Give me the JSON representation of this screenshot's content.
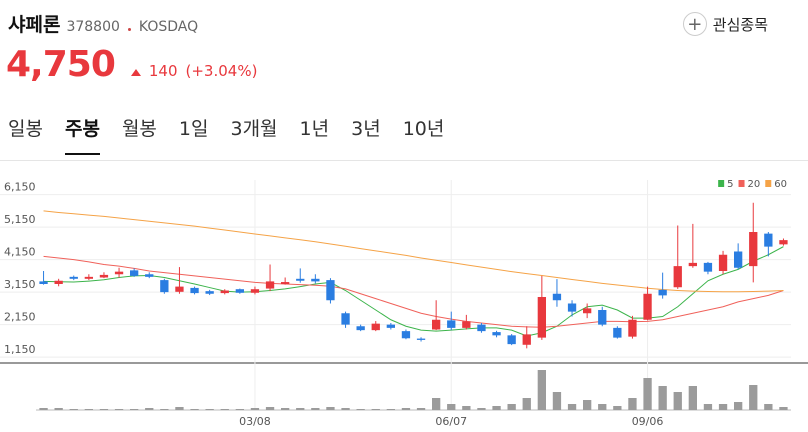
{
  "header": {
    "name": "샤페론",
    "code": "378800",
    "market": "KOSDAQ",
    "price": "4,750",
    "change": "140",
    "change_pct": "(+3.04%)",
    "watch_button": "관심종목"
  },
  "tabs": [
    "일봉",
    "주봉",
    "월봉",
    "1일",
    "3개월",
    "1년",
    "3년",
    "10년"
  ],
  "active_tab": 1,
  "chart_data": {
    "type": "candlestick",
    "categories": [
      null,
      null,
      null,
      null,
      null,
      null,
      null,
      null,
      null,
      null,
      null,
      null,
      null,
      null,
      "03/08",
      null,
      null,
      null,
      null,
      null,
      null,
      null,
      null,
      null,
      null,
      null,
      null,
      "06/07",
      null,
      null,
      null,
      null,
      null,
      null,
      null,
      null,
      null,
      null,
      null,
      null,
      "09/06",
      null,
      null,
      null,
      null,
      null,
      null,
      null,
      null,
      null
    ],
    "open": [
      3480,
      3400,
      3620,
      3560,
      3600,
      3700,
      3820,
      3700,
      3520,
      3160,
      3280,
      3180,
      3120,
      3240,
      3130,
      3260,
      3400,
      3560,
      3560,
      3520,
      2500,
      2100,
      1980,
      2150,
      1950,
      1720,
      2000,
      2280,
      2050,
      2150,
      1920,
      1820,
      1530,
      1750,
      3100,
      2800,
      2500,
      2600,
      2050,
      1780,
      2300,
      3220,
      3300,
      3950,
      4050,
      3800,
      4400,
      3950,
      4950,
      4620
    ],
    "high": [
      3800,
      3560,
      3660,
      3700,
      3760,
      3900,
      3880,
      3760,
      3560,
      3920,
      3320,
      3220,
      3240,
      3260,
      3320,
      4000,
      3600,
      3880,
      3700,
      3580,
      2550,
      2150,
      2260,
      2200,
      2000,
      1760,
      2900,
      2550,
      2450,
      2200,
      1960,
      1860,
      2100,
      3650,
      3550,
      2900,
      2800,
      2700,
      2100,
      2420,
      3320,
      3750,
      5200,
      5250,
      4080,
      4420,
      4650,
      5900,
      5000,
      4800
    ],
    "low": [
      3380,
      3330,
      3520,
      3520,
      3580,
      3600,
      3620,
      3580,
      3100,
      3100,
      3080,
      3060,
      3080,
      3100,
      3080,
      3180,
      3380,
      3440,
      3420,
      2800,
      2050,
      1950,
      1950,
      2000,
      1700,
      1630,
      1980,
      1980,
      2000,
      1900,
      1760,
      1520,
      1420,
      1680,
      2700,
      2400,
      2350,
      2100,
      1720,
      1720,
      2280,
      2950,
      3250,
      3900,
      3700,
      3700,
      3850,
      3450,
      4250,
      4580
    ],
    "close": [
      3400,
      3500,
      3560,
      3620,
      3680,
      3780,
      3650,
      3620,
      3150,
      3320,
      3120,
      3100,
      3200,
      3130,
      3240,
      3480,
      3460,
      3500,
      3480,
      2900,
      2150,
      1980,
      2180,
      2050,
      1730,
      1680,
      2300,
      2050,
      2250,
      1950,
      1820,
      1550,
      1850,
      3000,
      2900,
      2550,
      2650,
      2150,
      1750,
      2300,
      3100,
      3050,
      3950,
      4050,
      3780,
      4300,
      3900,
      5000,
      4550,
      4750
    ],
    "volume": [
      2,
      2,
      1,
      1,
      1,
      1,
      1,
      2,
      1,
      3,
      1,
      1,
      1,
      1,
      2,
      3,
      2,
      2,
      2,
      3,
      2,
      1,
      1,
      1,
      2,
      2,
      12,
      6,
      4,
      2,
      4,
      6,
      12,
      40,
      18,
      6,
      10,
      6,
      4,
      12,
      32,
      24,
      18,
      24,
      6,
      6,
      8,
      25,
      6,
      3
    ],
    "volume_ylim": [
      0,
      45
    ],
    "up_color": "#e8383d",
    "down_color": "#2a7de1",
    "volume_color": "#9b9b9b",
    "series": [
      {
        "name": "5",
        "color": "#3cb44b",
        "values": [
          3480,
          3470,
          3460,
          3490,
          3530,
          3600,
          3650,
          3660,
          3600,
          3500,
          3400,
          3290,
          3180,
          3150,
          3160,
          3200,
          3250,
          3320,
          3400,
          3450,
          3200,
          2900,
          2600,
          2300,
          2100,
          1980,
          1950,
          1980,
          2020,
          2050,
          2050,
          1980,
          1800,
          1900,
          2100,
          2450,
          2700,
          2750,
          2600,
          2350,
          2350,
          2400,
          2700,
          3100,
          3500,
          3700,
          3850,
          4100,
          4300,
          4550
        ]
      },
      {
        "name": "20",
        "color": "#f0615a",
        "values": [
          4250,
          4200,
          4150,
          4080,
          4000,
          3950,
          3880,
          3800,
          3750,
          3700,
          3650,
          3600,
          3550,
          3500,
          3450,
          3420,
          3400,
          3380,
          3360,
          3330,
          3250,
          3100,
          2950,
          2800,
          2650,
          2500,
          2400,
          2320,
          2250,
          2200,
          2150,
          2100,
          2080,
          2070,
          2100,
          2150,
          2200,
          2250,
          2250,
          2240,
          2250,
          2300,
          2400,
          2500,
          2600,
          2700,
          2850,
          2950,
          3050,
          3200
        ]
      },
      {
        "name": "60",
        "color": "#f5a347",
        "values": [
          5650,
          5600,
          5560,
          5520,
          5480,
          5430,
          5380,
          5330,
          5280,
          5230,
          5180,
          5120,
          5060,
          5000,
          4940,
          4880,
          4820,
          4760,
          4700,
          4630,
          4560,
          4490,
          4420,
          4350,
          4280,
          4200,
          4130,
          4060,
          3990,
          3920,
          3850,
          3780,
          3720,
          3660,
          3600,
          3540,
          3480,
          3420,
          3370,
          3320,
          3270,
          3230,
          3200,
          3180,
          3170,
          3160,
          3160,
          3170,
          3180,
          3200
        ]
      }
    ],
    "ylim": [
      1000,
      6600
    ],
    "yticks": [
      {
        "value": 6150,
        "label": "6,150"
      },
      {
        "value": 5150,
        "label": "5,150"
      },
      {
        "value": 4150,
        "label": "4,150"
      },
      {
        "value": 3150,
        "label": "3,150"
      },
      {
        "value": 2150,
        "label": "2,150"
      },
      {
        "value": 1150,
        "label": "1,150"
      }
    ],
    "grid": true,
    "legend": "top-right"
  }
}
